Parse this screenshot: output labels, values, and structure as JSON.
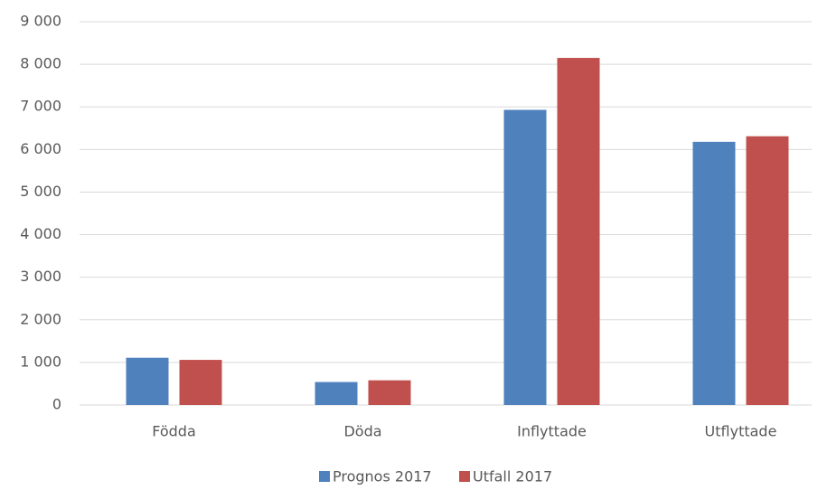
{
  "chart_data": {
    "type": "bar",
    "categories": [
      "Födda",
      "Döda",
      "Inflyttade",
      "Utflyttade"
    ],
    "series": [
      {
        "name": "Prognos 2017",
        "color": "#4f81bd",
        "values": [
          1110,
          540,
          6930,
          6180
        ]
      },
      {
        "name": "Utfall 2017",
        "color": "#c0504d",
        "values": [
          1060,
          580,
          8150,
          6310
        ]
      }
    ],
    "ylim": [
      0,
      9000
    ],
    "yticks": [
      0,
      {
        "value": 1000,
        "label": "1 000"
      },
      {
        "value": 2000,
        "label": "2 000"
      },
      {
        "value": 3000,
        "label": "3 000"
      },
      {
        "value": 4000,
        "label": "4 000"
      },
      {
        "value": 5000,
        "label": "5 000"
      },
      {
        "value": 6000,
        "label": "6 000"
      },
      {
        "value": 7000,
        "label": "7 000"
      },
      {
        "value": 8000,
        "label": "8 000"
      },
      {
        "value": 9000,
        "label": "9 000"
      }
    ],
    "grid": true,
    "legend": "bottom"
  }
}
